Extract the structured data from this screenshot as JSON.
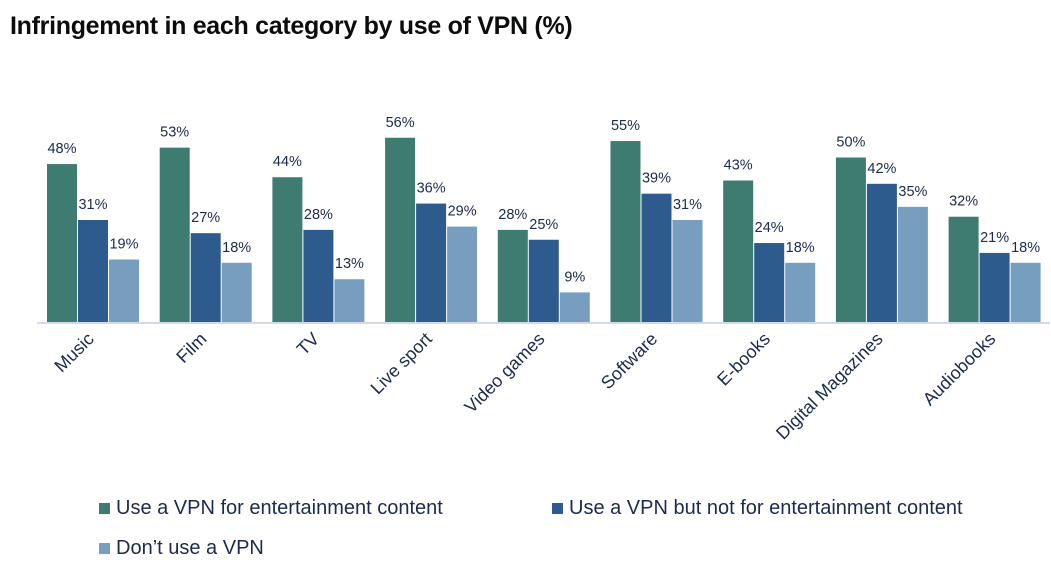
{
  "chart_data": {
    "type": "bar",
    "title": "Infringement in each category by use of VPN (%)",
    "xlabel": "",
    "ylabel": "",
    "ylim": [
      0,
      60
    ],
    "grid": false,
    "legend_position": "bottom",
    "categories": [
      "Music",
      "Film",
      "TV",
      "Live sport",
      "Video games",
      "Software",
      "E-books",
      "Digital Magazines",
      "Audiobooks"
    ],
    "series": [
      {
        "name": "Use a VPN for entertainment content",
        "color": "#3e7b70",
        "values": [
          48,
          53,
          44,
          56,
          28,
          55,
          43,
          50,
          32
        ]
      },
      {
        "name": "Use a VPN but not for entertainment content",
        "color": "#2e5b8e",
        "values": [
          31,
          27,
          28,
          36,
          25,
          39,
          24,
          42,
          21
        ]
      },
      {
        "name": "Don’t use a VPN",
        "color": "#779ebf",
        "values": [
          19,
          18,
          13,
          29,
          9,
          31,
          18,
          35,
          18
        ]
      }
    ],
    "value_suffix": "%"
  }
}
